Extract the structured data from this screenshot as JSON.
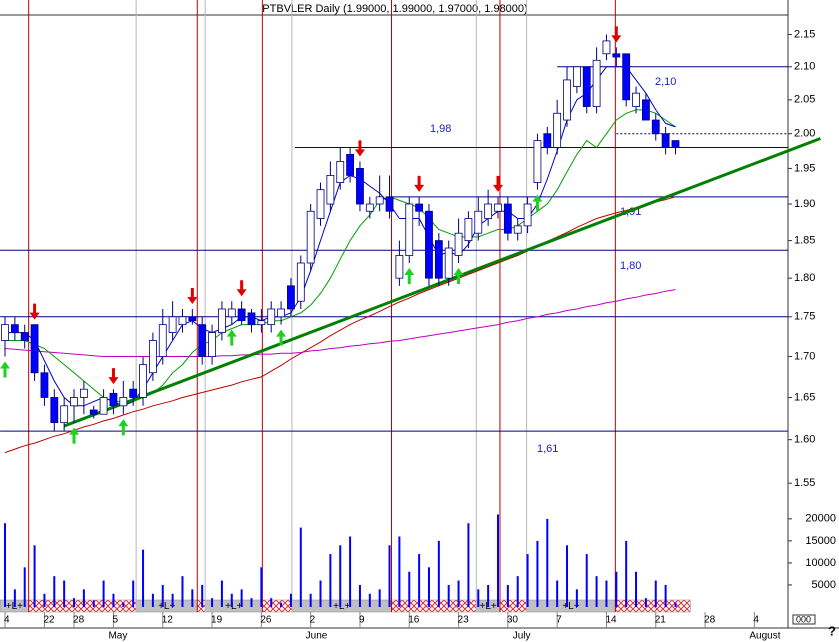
{
  "chart_data": {
    "type": "candlestick",
    "title": "PTBVLER Daily (1.99000, 1.99000, 1.97000, 1.98000)",
    "categories": [
      "4",
      null,
      null,
      null,
      "22",
      null,
      null,
      "28",
      null,
      null,
      null,
      "5",
      null,
      null,
      null,
      null,
      "12",
      null,
      null,
      null,
      null,
      "19",
      null,
      null,
      null,
      null,
      "26",
      null,
      null,
      null,
      null,
      "2",
      null,
      null,
      null,
      null,
      "9",
      null,
      null,
      null,
      null,
      "16",
      null,
      null,
      null,
      null,
      "23",
      null,
      null,
      null,
      null,
      "30",
      null,
      null,
      null,
      null,
      "7",
      null,
      null,
      null,
      null,
      "14",
      null,
      null,
      null,
      null,
      "21",
      null,
      null,
      null,
      null,
      "28",
      null,
      null,
      null,
      null,
      "4",
      null
    ],
    "months": [
      null,
      null,
      null,
      null,
      null,
      null,
      null,
      null,
      null,
      null,
      null,
      "May",
      null,
      null,
      null,
      null,
      null,
      null,
      null,
      null,
      null,
      null,
      null,
      null,
      null,
      null,
      null,
      null,
      null,
      null,
      null,
      "June",
      null,
      null,
      null,
      null,
      null,
      null,
      null,
      null,
      null,
      null,
      null,
      null,
      null,
      null,
      null,
      null,
      null,
      null,
      null,
      null,
      "July",
      null,
      null,
      null,
      null,
      null,
      null,
      null,
      null,
      null,
      null,
      null,
      null,
      null,
      null,
      null,
      null,
      null,
      null,
      null,
      null,
      null,
      null,
      null,
      "August",
      null
    ],
    "open": [
      1.72,
      1.74,
      1.73,
      1.74,
      1.68,
      1.65,
      1.62,
      1.64,
      1.65,
      1.635,
      1.63,
      1.655,
      1.64,
      1.66,
      1.65,
      1.68,
      1.7,
      1.73,
      1.74,
      1.75,
      1.74,
      1.7,
      1.73,
      1.75,
      1.76,
      1.755,
      1.74,
      1.74,
      1.75,
      1.79,
      1.77,
      1.82,
      1.88,
      1.9,
      1.93,
      1.97,
      1.95,
      1.89,
      1.9,
      1.91,
      1.8,
      1.83,
      1.9,
      1.89,
      1.85,
      1.8,
      1.83,
      1.85,
      1.86,
      1.88,
      1.89,
      1.9,
      1.86,
      1.87,
      1.93,
      2.0,
      1.98,
      2.02,
      2.07,
      2.1,
      2.04,
      2.12,
      2.12,
      2.12,
      2.04,
      2.05,
      2.02,
      2.0,
      1.99,
      null,
      null,
      null,
      null,
      null,
      null,
      null,
      null,
      null
    ],
    "high": [
      1.75,
      1.75,
      1.74,
      1.74,
      1.69,
      1.66,
      1.65,
      1.66,
      1.67,
      1.64,
      1.66,
      1.66,
      1.67,
      1.67,
      1.7,
      1.73,
      1.76,
      1.77,
      1.76,
      1.76,
      1.75,
      1.74,
      1.77,
      1.77,
      1.77,
      1.76,
      1.76,
      1.77,
      1.77,
      1.8,
      1.83,
      1.9,
      1.93,
      1.96,
      1.98,
      1.98,
      1.96,
      1.91,
      1.94,
      1.94,
      1.85,
      1.91,
      1.91,
      1.9,
      1.86,
      1.85,
      1.88,
      1.89,
      1.91,
      1.92,
      1.91,
      1.91,
      1.88,
      1.91,
      2.0,
      2.01,
      2.05,
      2.1,
      2.1,
      2.1,
      2.13,
      2.15,
      2.13,
      2.12,
      2.07,
      2.06,
      2.03,
      2.01,
      1.99,
      null,
      null,
      null,
      null,
      null,
      null,
      null,
      null,
      null
    ],
    "low": [
      1.7,
      1.72,
      1.71,
      1.67,
      1.64,
      1.61,
      1.61,
      1.62,
      1.63,
      1.625,
      1.63,
      1.63,
      1.63,
      1.64,
      1.64,
      1.67,
      1.69,
      1.72,
      1.73,
      1.74,
      1.69,
      1.69,
      1.72,
      1.74,
      1.74,
      1.73,
      1.73,
      1.73,
      1.74,
      1.75,
      1.76,
      1.81,
      1.87,
      1.89,
      1.92,
      1.93,
      1.89,
      1.88,
      1.89,
      1.88,
      1.79,
      1.82,
      1.87,
      1.79,
      1.79,
      1.79,
      1.82,
      1.84,
      1.85,
      1.87,
      1.88,
      1.85,
      1.85,
      1.86,
      1.92,
      1.97,
      1.97,
      2.01,
      2.06,
      2.03,
      2.03,
      2.11,
      2.1,
      2.04,
      2.03,
      2.02,
      1.99,
      1.97,
      1.97,
      null,
      null,
      null,
      null,
      null,
      null,
      null,
      null,
      null
    ],
    "close": [
      1.74,
      1.73,
      1.72,
      1.68,
      1.65,
      1.62,
      1.64,
      1.65,
      1.66,
      1.63,
      1.65,
      1.64,
      1.65,
      1.65,
      1.69,
      1.72,
      1.74,
      1.75,
      1.75,
      1.745,
      1.7,
      1.73,
      1.76,
      1.76,
      1.745,
      1.74,
      1.745,
      1.76,
      1.76,
      1.76,
      1.82,
      1.89,
      1.92,
      1.94,
      1.96,
      1.94,
      1.9,
      1.9,
      1.91,
      1.89,
      1.83,
      1.9,
      1.89,
      1.8,
      1.8,
      1.84,
      1.86,
      1.88,
      1.89,
      1.9,
      1.9,
      1.86,
      1.87,
      1.9,
      1.99,
      1.98,
      2.03,
      2.08,
      2.1,
      2.04,
      2.11,
      2.14,
      2.115,
      2.05,
      2.06,
      2.02,
      2.0,
      1.98,
      1.98,
      null,
      null,
      null,
      null,
      null,
      null,
      null,
      null,
      null
    ],
    "up_color": "#ffffff",
    "down_color": "#0000ff",
    "series": [
      {
        "color": "#c00000",
        "values": [
          1.585,
          1.589,
          1.593,
          1.596,
          1.6,
          1.604,
          1.607,
          1.611,
          1.615,
          1.618,
          1.622,
          1.625,
          1.629,
          1.633,
          1.636,
          1.64,
          1.643,
          1.646,
          1.65,
          1.653,
          1.656,
          1.659,
          1.662,
          1.665,
          1.669,
          1.672,
          1.675,
          1.682,
          1.689,
          1.697,
          1.704,
          1.711,
          1.718,
          1.726,
          1.733,
          1.74,
          1.746,
          1.751,
          1.757,
          1.763,
          1.769,
          1.774,
          1.78,
          1.785,
          1.79,
          1.795,
          1.8,
          1.805,
          1.81,
          1.815,
          1.82,
          1.825,
          1.83,
          1.836,
          1.843,
          1.849,
          1.855,
          1.861,
          1.868,
          1.874,
          1.88,
          1.884,
          1.888,
          1.891,
          1.895,
          1.899,
          1.903,
          1.906,
          1.91,
          null,
          null,
          null,
          null,
          null,
          null,
          null,
          null,
          null
        ]
      },
      {
        "color": "#c000c0",
        "values": [
          1.71,
          1.709,
          1.708,
          1.707,
          1.706,
          1.705,
          1.704,
          1.703,
          1.702,
          1.701,
          1.7,
          1.7,
          1.7,
          1.7,
          1.7,
          1.7,
          1.7,
          1.7,
          1.7,
          1.7,
          1.7,
          1.7,
          1.701,
          1.701,
          1.702,
          1.702,
          1.703,
          1.703,
          1.704,
          1.704,
          1.705,
          1.707,
          1.708,
          1.71,
          1.711,
          1.713,
          1.714,
          1.716,
          1.717,
          1.719,
          1.72,
          1.722,
          1.724,
          1.726,
          1.728,
          1.73,
          1.732,
          1.734,
          1.736,
          1.738,
          1.74,
          1.743,
          1.745,
          1.748,
          1.75,
          1.753,
          1.755,
          1.758,
          1.76,
          1.763,
          1.765,
          1.768,
          1.77,
          1.773,
          1.775,
          1.778,
          1.78,
          1.783,
          1.785,
          null,
          null,
          null,
          null,
          null,
          null,
          null,
          null,
          null
        ]
      },
      {
        "color": "#00a000",
        "values": [
          1.72,
          1.72,
          1.72,
          1.715,
          1.71,
          1.7,
          1.69,
          1.68,
          1.67,
          1.66,
          1.65,
          1.645,
          1.645,
          1.645,
          1.65,
          1.655,
          1.665,
          1.68,
          1.69,
          1.705,
          1.715,
          1.72,
          1.73,
          1.735,
          1.74,
          1.74,
          1.74,
          1.745,
          1.745,
          1.75,
          1.755,
          1.765,
          1.78,
          1.8,
          1.825,
          1.85,
          1.87,
          1.885,
          1.905,
          1.91,
          1.905,
          1.9,
          1.895,
          1.88,
          1.865,
          1.86,
          1.855,
          1.855,
          1.855,
          1.86,
          1.865,
          1.865,
          1.87,
          1.88,
          1.89,
          1.9,
          1.92,
          1.945,
          1.97,
          1.99,
          1.98,
          2.0,
          2.02,
          2.03,
          2.035,
          2.035,
          2.03,
          2.02,
          2.01,
          null,
          null,
          null,
          null,
          null,
          null,
          null,
          null,
          null
        ]
      },
      {
        "color": "#0000cc",
        "values": [
          1.73,
          1.73,
          1.73,
          1.72,
          1.695,
          1.67,
          1.65,
          1.64,
          1.64,
          1.645,
          1.65,
          1.645,
          1.64,
          1.645,
          1.66,
          1.68,
          1.7,
          1.72,
          1.74,
          1.745,
          1.735,
          1.73,
          1.735,
          1.74,
          1.75,
          1.75,
          1.745,
          1.75,
          1.75,
          1.755,
          1.775,
          1.81,
          1.85,
          1.89,
          1.93,
          1.94,
          1.935,
          1.925,
          1.915,
          1.9,
          1.88,
          1.88,
          1.88,
          1.855,
          1.83,
          1.835,
          1.83,
          1.845,
          1.87,
          1.88,
          1.89,
          1.89,
          1.88,
          1.88,
          1.9,
          1.935,
          1.975,
          2.02,
          2.05,
          2.06,
          2.08,
          2.1,
          2.1,
          2.1,
          2.08,
          2.06,
          2.035,
          2.015,
          2.01,
          null,
          null,
          null,
          null,
          null,
          null,
          null,
          null,
          null
        ]
      }
    ],
    "volume": [
      19000,
      4000,
      9000,
      14000,
      3000,
      7000,
      6000,
      2000,
      4000,
      1500,
      6000,
      3000,
      1000,
      6000,
      13000,
      3000,
      5000,
      3000,
      7000,
      4000,
      5000,
      2000,
      6000,
      3000,
      4000,
      2000,
      9000,
      2000,
      1000,
      3000,
      18000,
      3000,
      6000,
      12000,
      14000,
      16000,
      5000,
      3000,
      4000,
      14000,
      16000,
      8000,
      12000,
      9000,
      15000,
      5000,
      6000,
      19000,
      4000,
      5000,
      21000,
      5000,
      7000,
      12000,
      15000,
      20000,
      6000,
      14000,
      4000,
      12000,
      7000,
      6000,
      8000,
      15000,
      8000,
      2000,
      6000,
      5000,
      1000,
      null,
      null,
      null,
      null,
      null,
      null,
      null,
      null,
      null
    ],
    "volume_color": "#0000ff",
    "ylim": [
      1.52,
      2.2
    ],
    "log_scale": true,
    "yticks": [
      {
        "value": 1.55,
        "label": "1.55"
      },
      {
        "value": 1.6,
        "label": "1.60"
      },
      {
        "value": 1.65,
        "label": "1.65"
      },
      {
        "value": 1.7,
        "label": "1.70"
      },
      {
        "value": 1.75,
        "label": "1.75"
      },
      {
        "value": 1.8,
        "label": "1.80"
      },
      {
        "value": 1.85,
        "label": "1.85"
      },
      {
        "value": 1.9,
        "label": "1.90"
      },
      {
        "value": 1.95,
        "label": "1.95"
      },
      {
        "value": 2.0,
        "label": "2.00"
      },
      {
        "value": 2.05,
        "label": "2.05"
      },
      {
        "value": 2.1,
        "label": "2.10"
      },
      {
        "value": 2.15,
        "label": "2.15"
      }
    ],
    "vlim": [
      0,
      22000
    ],
    "vticks": [
      5000,
      10000,
      15000,
      20000
    ],
    "levels": [
      {
        "value": 2.1,
        "from": 56
      },
      {
        "value": 1.98,
        "from": 29.4
      },
      {
        "value": 1.91,
        "from": 39
      },
      {
        "value": 1.837,
        "from": -0.5
      },
      {
        "value": 1.75,
        "from": -0.5
      },
      {
        "value": 1.61,
        "from": -0.5
      }
    ],
    "dotted_level": {
      "value": 2.0,
      "from": 62
    },
    "trendline": {
      "from": [
        6,
        1.616
      ],
      "to": [
        82.7,
        1.993
      ]
    },
    "sell_signals": [
      3,
      11,
      19,
      24,
      36,
      42,
      50,
      62
    ],
    "buy_signals": [
      0,
      7,
      12,
      23,
      28,
      41,
      46,
      54
    ],
    "signal_strip": [
      {
        "from": -0.5,
        "to": 2.4,
        "label": "+L+"
      },
      {
        "from": 2.4,
        "to": 13.3
      },
      {
        "from": 13.3,
        "to": 19.5,
        "label": "+L+"
      },
      {
        "from": 19.5,
        "to": 20.3
      },
      {
        "from": 20.3,
        "to": 26.1,
        "label": "+L+"
      },
      {
        "from": 26.1,
        "to": 29.1
      },
      {
        "from": 29.1,
        "to": 39.2,
        "label": "+L+"
      },
      {
        "from": 39.2,
        "to": 47.8
      },
      {
        "from": 47.8,
        "to": 50.2,
        "label": "+L+"
      },
      {
        "from": 50.2,
        "to": 52.9
      },
      {
        "from": 52.9,
        "to": 61.9,
        "label": "+L+"
      },
      {
        "from": 61.9,
        "to": 69.5
      }
    ],
    "annotations": [
      "1,98",
      "2,10",
      "1,91",
      "1,80",
      "1,61"
    ],
    "corner_box": "000",
    "help": "?"
  }
}
